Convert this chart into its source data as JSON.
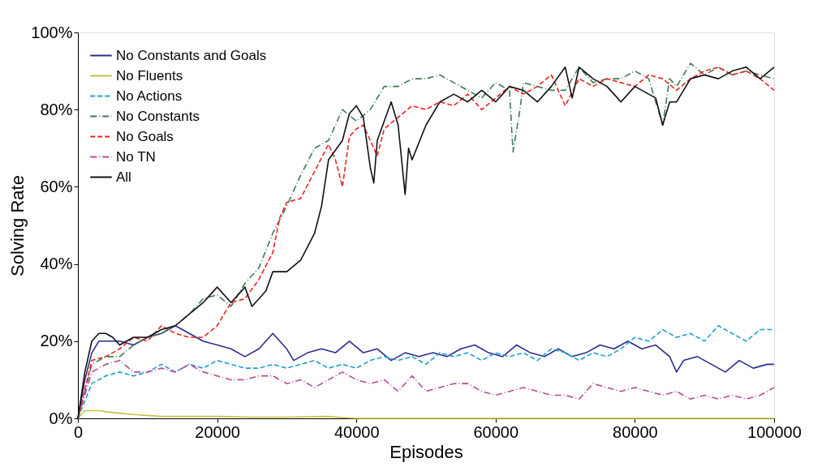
{
  "chart_data": {
    "type": "line",
    "xlabel": "Episodes",
    "ylabel": "Solving Rate",
    "xlim": [
      0,
      100000
    ],
    "xticks": [
      0,
      20000,
      40000,
      60000,
      80000,
      100000
    ],
    "ylim": [
      0,
      100
    ],
    "yticks": [
      {
        "value": 0,
        "label": "0%"
      },
      {
        "value": 20,
        "label": "20%"
      },
      {
        "value": 40,
        "label": "40%"
      },
      {
        "value": 60,
        "label": "60%"
      },
      {
        "value": 80,
        "label": "80%"
      },
      {
        "value": 100,
        "label": "100%"
      }
    ],
    "grid": false,
    "legend": "top left",
    "marker": "none",
    "series": [
      {
        "name": "No Constants and Goals",
        "color": "#2b2b8f",
        "line_style": "solid",
        "x": [
          0,
          1000,
          2000,
          3000,
          4000,
          6000,
          8000,
          10000,
          12000,
          14000,
          16000,
          18000,
          20000,
          22000,
          24000,
          26000,
          28000,
          30000,
          31000,
          33000,
          35000,
          37000,
          39000,
          41000,
          43000,
          45000,
          47000,
          49000,
          51000,
          53000,
          55000,
          57000,
          59000,
          61000,
          63000,
          65000,
          67000,
          69000,
          71000,
          73000,
          75000,
          77000,
          79000,
          81000,
          83000,
          85000,
          86000,
          87000,
          89000,
          91000,
          93000,
          95000,
          97000,
          99000,
          100000
        ],
        "values": [
          0,
          10,
          17,
          20,
          20,
          20,
          19,
          21,
          22,
          24,
          22,
          20,
          19,
          18,
          16,
          18,
          22,
          18,
          15,
          17,
          18,
          17,
          20,
          17,
          18,
          15,
          17,
          16,
          17,
          16,
          18,
          19,
          17,
          16,
          19,
          17,
          16,
          18,
          16,
          17,
          19,
          18,
          20,
          18,
          19,
          16,
          12,
          15,
          16,
          14,
          12,
          15,
          13,
          14,
          14
        ]
      },
      {
        "name": "No Fluents",
        "color": "#c8c040",
        "line_style": "solid",
        "x": [
          0,
          1000,
          3000,
          5000,
          8000,
          12000,
          16000,
          20000,
          25000,
          30000,
          36000,
          38000,
          40000,
          60000,
          80000,
          100000
        ],
        "values": [
          0,
          2,
          2,
          1.5,
          1,
          0.5,
          0.5,
          0.5,
          0.3,
          0.3,
          0.5,
          0.2,
          0,
          0,
          0,
          0
        ]
      },
      {
        "name": "No Actions",
        "color": "#1aa0d0",
        "line_style": "dashed",
        "x": [
          0,
          2000,
          4000,
          6000,
          8000,
          10000,
          12000,
          14000,
          16000,
          18000,
          20000,
          22000,
          24000,
          26000,
          28000,
          30000,
          32000,
          34000,
          36000,
          38000,
          40000,
          42000,
          44000,
          46000,
          48000,
          50000,
          52000,
          54000,
          56000,
          58000,
          60000,
          62000,
          64000,
          66000,
          68000,
          70000,
          72000,
          74000,
          76000,
          78000,
          80000,
          82000,
          84000,
          86000,
          88000,
          90000,
          92000,
          94000,
          96000,
          98000,
          100000
        ],
        "values": [
          0,
          9,
          11,
          12,
          11,
          12,
          14,
          12,
          14,
          13,
          15,
          14,
          13,
          13,
          14,
          13,
          14,
          15,
          13,
          14,
          13,
          15,
          16,
          15,
          16,
          14,
          17,
          16,
          17,
          15,
          17,
          16,
          17,
          15,
          18,
          17,
          15,
          17,
          16,
          18,
          21,
          20,
          23,
          21,
          22,
          20,
          24,
          22,
          20,
          23,
          23
        ]
      },
      {
        "name": "No Constants",
        "color": "#3f7a55",
        "line_style": "dashdot",
        "x": [
          0,
          2000,
          4000,
          6000,
          8000,
          10000,
          12000,
          14000,
          16000,
          18000,
          20000,
          22000,
          24000,
          26000,
          28000,
          30000,
          32000,
          34000,
          36000,
          38000,
          40000,
          42000,
          44000,
          46000,
          48000,
          50000,
          52000,
          54000,
          56000,
          58000,
          60000,
          62000,
          62500,
          63500,
          64000,
          66000,
          68000,
          70000,
          72000,
          74000,
          76000,
          78000,
          80000,
          82000,
          84000,
          85000,
          86000,
          88000,
          90000,
          92000,
          94000,
          96000,
          98000,
          100000
        ],
        "values": [
          0,
          14,
          16,
          16,
          19,
          21,
          22,
          24,
          27,
          31,
          32,
          29,
          35,
          39,
          48,
          55,
          63,
          70,
          72,
          80,
          77,
          80,
          86,
          86,
          88,
          88,
          89,
          87,
          85,
          83,
          87,
          85,
          69,
          80,
          87,
          86,
          85,
          85,
          91,
          87,
          88,
          88,
          90,
          88,
          76,
          88,
          86,
          92,
          89,
          91,
          89,
          90,
          89,
          88
        ]
      },
      {
        "name": "No Goals",
        "color": "#ee2222",
        "line_style": "dashed",
        "x": [
          0,
          2000,
          4000,
          6000,
          8000,
          10000,
          12000,
          14000,
          16000,
          18000,
          20000,
          22000,
          24000,
          26000,
          28000,
          29000,
          30000,
          32000,
          34000,
          36000,
          37000,
          38000,
          39000,
          40000,
          41000,
          42000,
          43000,
          44000,
          46000,
          48000,
          50000,
          52000,
          54000,
          56000,
          58000,
          60000,
          62000,
          64000,
          66000,
          68000,
          70000,
          72000,
          74000,
          76000,
          78000,
          80000,
          82000,
          84000,
          86000,
          88000,
          90000,
          92000,
          94000,
          96000,
          98000,
          100000
        ],
        "values": [
          0,
          15,
          16,
          18,
          21,
          20,
          24,
          22,
          21,
          21,
          24,
          30,
          31,
          36,
          43,
          52,
          56,
          57,
          64,
          71,
          67,
          60,
          73,
          75,
          76,
          72,
          68,
          75,
          78,
          81,
          80,
          82,
          81,
          84,
          80,
          83,
          86,
          84,
          86,
          89,
          81,
          88,
          86,
          88,
          87,
          86,
          89,
          88,
          85,
          88,
          90,
          91,
          89,
          90,
          88,
          85
        ]
      },
      {
        "name": "No TN",
        "color": "#b84c8f",
        "line_style": "dashdot",
        "x": [
          0,
          2000,
          4000,
          6000,
          8000,
          10000,
          12000,
          14000,
          16000,
          18000,
          20000,
          22000,
          24000,
          26000,
          28000,
          30000,
          32000,
          34000,
          36000,
          38000,
          40000,
          42000,
          44000,
          46000,
          48000,
          50000,
          52000,
          54000,
          56000,
          58000,
          60000,
          62000,
          64000,
          66000,
          68000,
          70000,
          72000,
          74000,
          76000,
          78000,
          80000,
          82000,
          84000,
          86000,
          88000,
          90000,
          92000,
          94000,
          96000,
          98000,
          100000
        ],
        "values": [
          0,
          12,
          14,
          15,
          12,
          12,
          13,
          12,
          14,
          12,
          11,
          10,
          10,
          11,
          11,
          9,
          10,
          8,
          10,
          12,
          10,
          9,
          10,
          7,
          11,
          7,
          8,
          9,
          9,
          7,
          6,
          7,
          8,
          7,
          6,
          6,
          5,
          9,
          8,
          7,
          8,
          7,
          6,
          7,
          5,
          6,
          5,
          6,
          5,
          6,
          8
        ]
      },
      {
        "name": "All",
        "color": "#111111",
        "line_style": "solid",
        "x": [
          0,
          1000,
          2000,
          3000,
          4000,
          5000,
          6000,
          7000,
          8000,
          10000,
          12000,
          14000,
          16000,
          18000,
          20000,
          22000,
          24000,
          25000,
          27000,
          28000,
          30000,
          32000,
          34000,
          35000,
          36000,
          38000,
          39000,
          40000,
          41000,
          42000,
          42500,
          43000,
          45000,
          46000,
          47000,
          47500,
          48000,
          50000,
          52000,
          54000,
          56000,
          58000,
          60000,
          62000,
          64000,
          66000,
          68000,
          70000,
          71000,
          72000,
          74000,
          76000,
          78000,
          80000,
          82000,
          83000,
          84000,
          85000,
          86000,
          88000,
          90000,
          92000,
          94000,
          96000,
          98000,
          100000
        ],
        "values": [
          0,
          12,
          20,
          22,
          22,
          21,
          19,
          20,
          21,
          21,
          23,
          24,
          27,
          30,
          34,
          30,
          34,
          29,
          33,
          38,
          38,
          41,
          48,
          55,
          67,
          72,
          79,
          81,
          78,
          65,
          61,
          72,
          82,
          76,
          58,
          70,
          67,
          76,
          82,
          84,
          82,
          85,
          82,
          86,
          85,
          82,
          86,
          91,
          83,
          91,
          88,
          86,
          82,
          86,
          84,
          83,
          76,
          82,
          82,
          88,
          89,
          88,
          90,
          91,
          88,
          91
        ]
      }
    ]
  }
}
